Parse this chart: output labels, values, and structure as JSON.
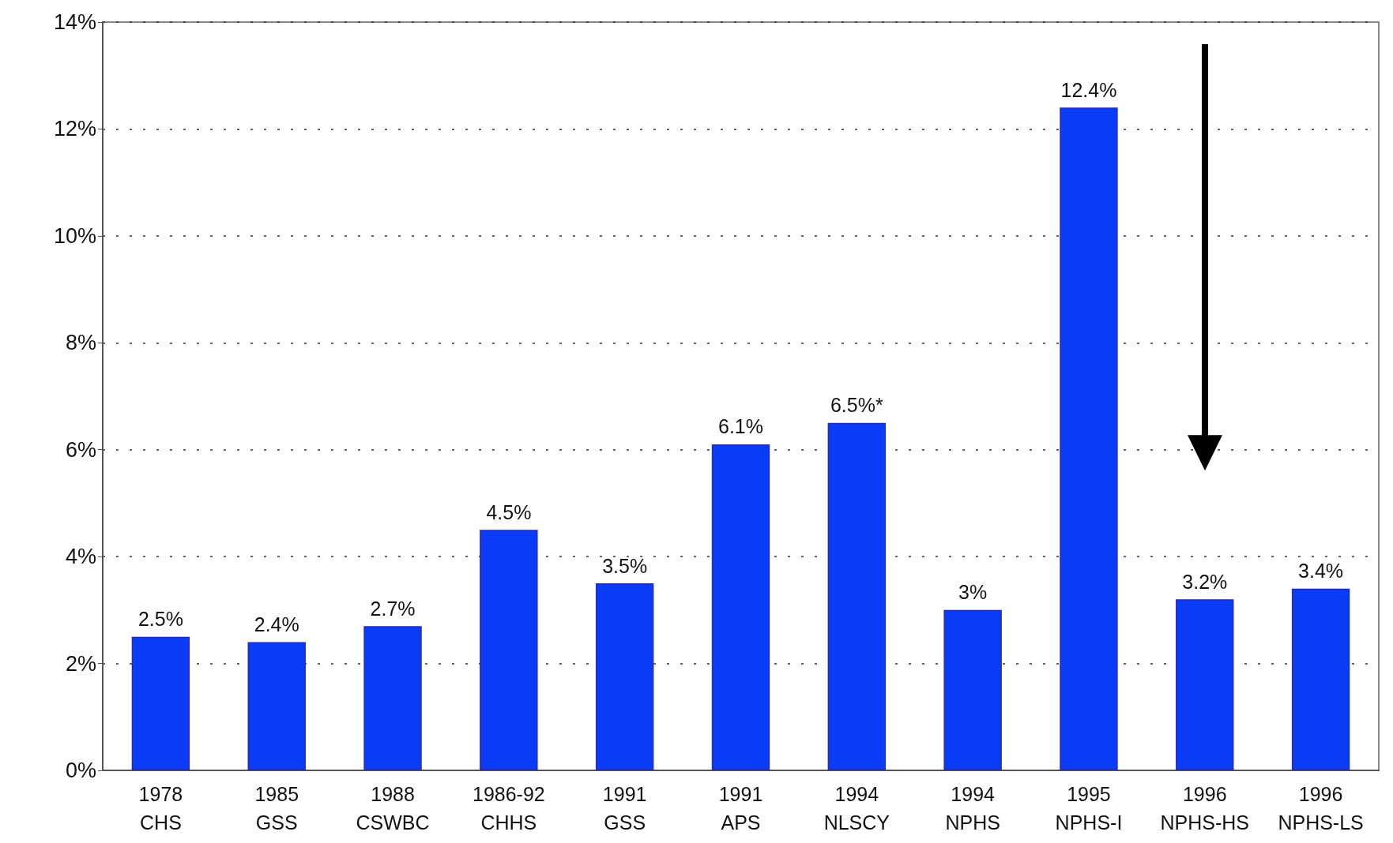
{
  "chart_data": {
    "type": "bar",
    "categories": [
      "1978\nCHS",
      "1985\nGSS",
      "1988\nCSWBC",
      "1986-92\nCHHS",
      "1991\nGSS",
      "1991\nAPS",
      "1994\nNLSCY",
      "1994\nNPHS",
      "1995\nNPHS-I",
      "1996\nNPHS-HS",
      "1996\nNPHS-LS"
    ],
    "values": [
      2.5,
      2.4,
      2.7,
      4.5,
      3.5,
      6.1,
      6.5,
      3,
      12.4,
      3.2,
      3.4
    ],
    "value_labels": [
      "2.5%",
      "2.4%",
      "2.7%",
      "4.5%",
      "3.5%",
      "6.1%",
      "6.5%*",
      "3%",
      "12.4%",
      "3.2%",
      "3.4%"
    ],
    "color": "#0a3cf5",
    "ylim": [
      0,
      14
    ],
    "yticks": [
      {
        "value": 0,
        "label": "0%"
      },
      {
        "value": 2,
        "label": "2%"
      },
      {
        "value": 4,
        "label": "4%"
      },
      {
        "value": 6,
        "label": "6%"
      },
      {
        "value": 8,
        "label": "8%"
      },
      {
        "value": 10,
        "label": "10%"
      },
      {
        "value": 12,
        "label": "12%"
      },
      {
        "value": 14,
        "label": "14%"
      }
    ],
    "grid": "y"
  }
}
